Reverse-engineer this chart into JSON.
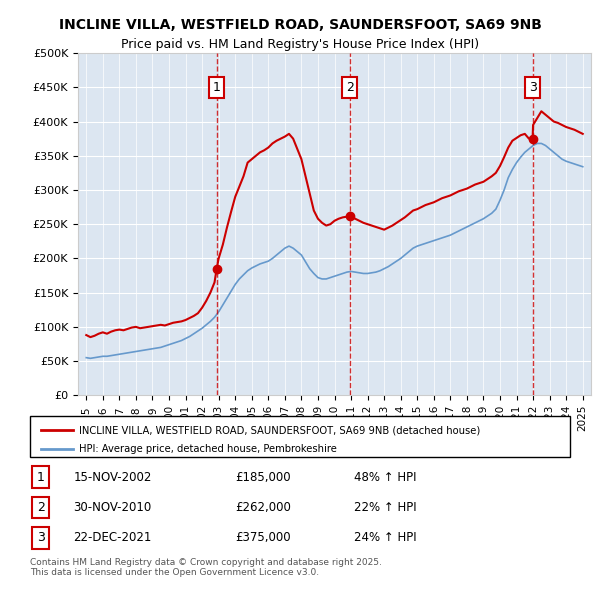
{
  "title_line1": "INCLINE VILLA, WESTFIELD ROAD, SAUNDERSFOOT, SA69 9NB",
  "title_line2": "Price paid vs. HM Land Registry's House Price Index (HPI)",
  "legend_red": "INCLINE VILLA, WESTFIELD ROAD, SAUNDERSFOOT, SA69 9NB (detached house)",
  "legend_blue": "HPI: Average price, detached house, Pembrokeshire",
  "footer": "Contains HM Land Registry data © Crown copyright and database right 2025.\nThis data is licensed under the Open Government Licence v3.0.",
  "purchases": [
    {
      "num": 1,
      "date": "15-NOV-2002",
      "price": "£185,000",
      "change": "48% ↑ HPI"
    },
    {
      "num": 2,
      "date": "30-NOV-2010",
      "price": "£262,000",
      "change": "22% ↑ HPI"
    },
    {
      "num": 3,
      "date": "22-DEC-2021",
      "price": "£375,000",
      "change": "24% ↑ HPI"
    }
  ],
  "purchase_years": [
    2002.88,
    2010.92,
    2021.97
  ],
  "purchase_prices": [
    185000,
    262000,
    375000
  ],
  "red_color": "#cc0000",
  "blue_color": "#6699cc",
  "dashed_color": "#cc0000",
  "background_color": "#dce6f1",
  "plot_bg": "#dce6f1",
  "ylim": [
    0,
    500000
  ],
  "xlim_start": 1994.5,
  "xlim_end": 2025.5,
  "red_x": [
    1995.0,
    1995.25,
    1995.5,
    1995.75,
    1996.0,
    1996.25,
    1996.5,
    1996.75,
    1997.0,
    1997.25,
    1997.5,
    1997.75,
    1998.0,
    1998.25,
    1998.5,
    1998.75,
    1999.0,
    1999.25,
    1999.5,
    1999.75,
    2000.0,
    2000.25,
    2000.5,
    2000.75,
    2001.0,
    2001.25,
    2001.5,
    2001.75,
    2002.0,
    2002.25,
    2002.5,
    2002.75,
    2002.88,
    2003.0,
    2003.25,
    2003.5,
    2003.75,
    2004.0,
    2004.25,
    2004.5,
    2004.75,
    2005.0,
    2005.25,
    2005.5,
    2005.75,
    2006.0,
    2006.25,
    2006.5,
    2006.75,
    2007.0,
    2007.25,
    2007.5,
    2007.75,
    2008.0,
    2008.25,
    2008.5,
    2008.75,
    2009.0,
    2009.25,
    2009.5,
    2009.75,
    2010.0,
    2010.25,
    2010.5,
    2010.75,
    2010.92,
    2011.0,
    2011.25,
    2011.5,
    2011.75,
    2012.0,
    2012.25,
    2012.5,
    2012.75,
    2013.0,
    2013.25,
    2013.5,
    2013.75,
    2014.0,
    2014.25,
    2014.5,
    2014.75,
    2015.0,
    2015.25,
    2015.5,
    2015.75,
    2016.0,
    2016.25,
    2016.5,
    2016.75,
    2017.0,
    2017.25,
    2017.5,
    2017.75,
    2018.0,
    2018.25,
    2018.5,
    2018.75,
    2019.0,
    2019.25,
    2019.5,
    2019.75,
    2020.0,
    2020.25,
    2020.5,
    2020.75,
    2021.0,
    2021.25,
    2021.5,
    2021.75,
    2021.97,
    2022.0,
    2022.25,
    2022.5,
    2022.75,
    2023.0,
    2023.25,
    2023.5,
    2023.75,
    2024.0,
    2024.25,
    2024.5,
    2024.75,
    2025.0
  ],
  "red_y": [
    88000,
    85000,
    87000,
    90000,
    92000,
    90000,
    93000,
    95000,
    96000,
    95000,
    97000,
    99000,
    100000,
    98000,
    99000,
    100000,
    101000,
    102000,
    103000,
    102000,
    104000,
    106000,
    107000,
    108000,
    110000,
    113000,
    116000,
    120000,
    128000,
    138000,
    150000,
    165000,
    185000,
    200000,
    220000,
    245000,
    268000,
    290000,
    305000,
    320000,
    340000,
    345000,
    350000,
    355000,
    358000,
    362000,
    368000,
    372000,
    375000,
    378000,
    382000,
    375000,
    360000,
    345000,
    320000,
    295000,
    270000,
    258000,
    252000,
    248000,
    250000,
    255000,
    258000,
    260000,
    261000,
    262000,
    260000,
    258000,
    255000,
    252000,
    250000,
    248000,
    246000,
    244000,
    242000,
    245000,
    248000,
    252000,
    256000,
    260000,
    265000,
    270000,
    272000,
    275000,
    278000,
    280000,
    282000,
    285000,
    288000,
    290000,
    292000,
    295000,
    298000,
    300000,
    302000,
    305000,
    308000,
    310000,
    312000,
    316000,
    320000,
    325000,
    335000,
    348000,
    362000,
    372000,
    376000,
    380000,
    382000,
    375000,
    375000,
    395000,
    405000,
    415000,
    410000,
    405000,
    400000,
    398000,
    395000,
    392000,
    390000,
    388000,
    385000,
    382000
  ],
  "blue_x": [
    1995.0,
    1995.25,
    1995.5,
    1995.75,
    1996.0,
    1996.25,
    1996.5,
    1996.75,
    1997.0,
    1997.25,
    1997.5,
    1997.75,
    1998.0,
    1998.25,
    1998.5,
    1998.75,
    1999.0,
    1999.25,
    1999.5,
    1999.75,
    2000.0,
    2000.25,
    2000.5,
    2000.75,
    2001.0,
    2001.25,
    2001.5,
    2001.75,
    2002.0,
    2002.25,
    2002.5,
    2002.75,
    2003.0,
    2003.25,
    2003.5,
    2003.75,
    2004.0,
    2004.25,
    2004.5,
    2004.75,
    2005.0,
    2005.25,
    2005.5,
    2005.75,
    2006.0,
    2006.25,
    2006.5,
    2006.75,
    2007.0,
    2007.25,
    2007.5,
    2007.75,
    2008.0,
    2008.25,
    2008.5,
    2008.75,
    2009.0,
    2009.25,
    2009.5,
    2009.75,
    2010.0,
    2010.25,
    2010.5,
    2010.75,
    2011.0,
    2011.25,
    2011.5,
    2011.75,
    2012.0,
    2012.25,
    2012.5,
    2012.75,
    2013.0,
    2013.25,
    2013.5,
    2013.75,
    2014.0,
    2014.25,
    2014.5,
    2014.75,
    2015.0,
    2015.25,
    2015.5,
    2015.75,
    2016.0,
    2016.25,
    2016.5,
    2016.75,
    2017.0,
    2017.25,
    2017.5,
    2017.75,
    2018.0,
    2018.25,
    2018.5,
    2018.75,
    2019.0,
    2019.25,
    2019.5,
    2019.75,
    2020.0,
    2020.25,
    2020.5,
    2020.75,
    2021.0,
    2021.25,
    2021.5,
    2021.75,
    2022.0,
    2022.25,
    2022.5,
    2022.75,
    2023.0,
    2023.25,
    2023.5,
    2023.75,
    2024.0,
    2024.25,
    2024.5,
    2024.75,
    2025.0
  ],
  "blue_y": [
    55000,
    54000,
    55000,
    56000,
    57000,
    57000,
    58000,
    59000,
    60000,
    61000,
    62000,
    63000,
    64000,
    65000,
    66000,
    67000,
    68000,
    69000,
    70000,
    72000,
    74000,
    76000,
    78000,
    80000,
    83000,
    86000,
    90000,
    94000,
    98000,
    103000,
    108000,
    114000,
    122000,
    132000,
    142000,
    152000,
    162000,
    170000,
    176000,
    182000,
    186000,
    189000,
    192000,
    194000,
    196000,
    200000,
    205000,
    210000,
    215000,
    218000,
    215000,
    210000,
    205000,
    195000,
    185000,
    178000,
    172000,
    170000,
    170000,
    172000,
    174000,
    176000,
    178000,
    180000,
    181000,
    180000,
    179000,
    178000,
    178000,
    179000,
    180000,
    182000,
    185000,
    188000,
    192000,
    196000,
    200000,
    205000,
    210000,
    215000,
    218000,
    220000,
    222000,
    224000,
    226000,
    228000,
    230000,
    232000,
    234000,
    237000,
    240000,
    243000,
    246000,
    249000,
    252000,
    255000,
    258000,
    262000,
    266000,
    272000,
    285000,
    300000,
    318000,
    330000,
    340000,
    348000,
    355000,
    360000,
    365000,
    368000,
    368000,
    365000,
    360000,
    355000,
    350000,
    345000,
    342000,
    340000,
    338000,
    336000,
    334000
  ]
}
